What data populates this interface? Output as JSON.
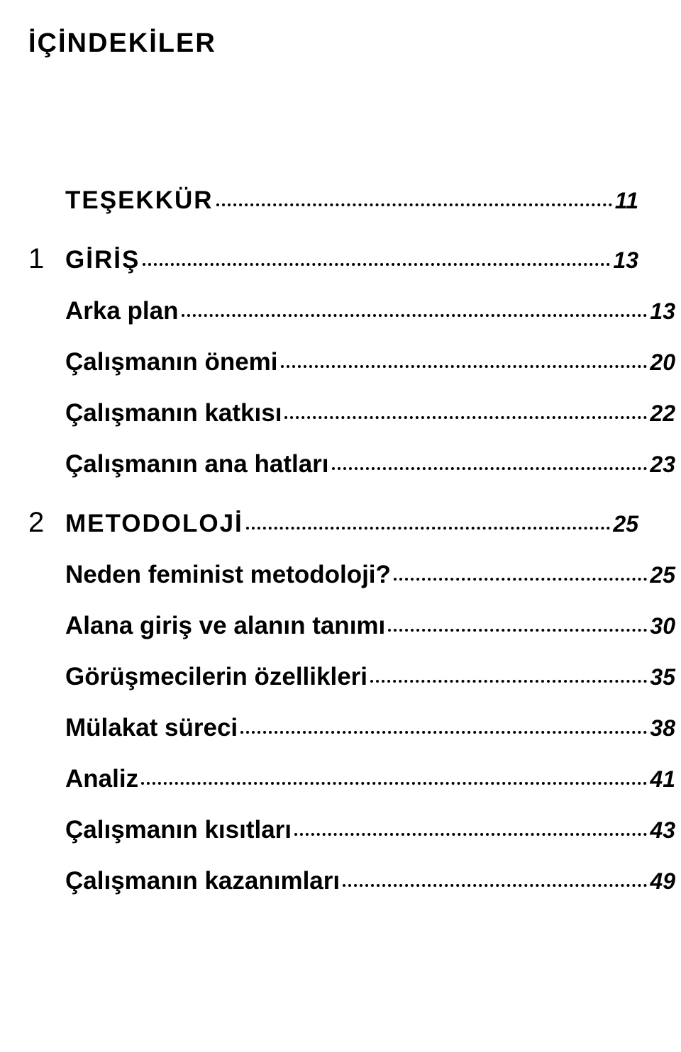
{
  "title": "İÇİNDEKİLER",
  "entries": [
    {
      "level": "main",
      "prefix": "",
      "label": "Teşekkür",
      "smallcaps": true,
      "page": "11"
    },
    {
      "level": "main",
      "prefix": "1",
      "label": "Gİrİş",
      "smallcaps": true,
      "page": "13"
    },
    {
      "level": "sub",
      "prefix": "",
      "label": "Arka plan",
      "smallcaps": false,
      "page": "13"
    },
    {
      "level": "sub",
      "prefix": "",
      "label": "Çalışmanın önemi",
      "smallcaps": false,
      "page": "20"
    },
    {
      "level": "sub",
      "prefix": "",
      "label": "Çalışmanın katkısı",
      "smallcaps": false,
      "page": "22"
    },
    {
      "level": "sub",
      "prefix": "",
      "label": "Çalışmanın ana hatları",
      "smallcaps": false,
      "page": "23"
    },
    {
      "level": "main",
      "prefix": "2",
      "label": "Metodolojİ",
      "smallcaps": true,
      "page": "25"
    },
    {
      "level": "sub",
      "prefix": "",
      "label": "Neden feminist metodoloji?",
      "smallcaps": false,
      "page": "25"
    },
    {
      "level": "sub",
      "prefix": "",
      "label": "Alana giriş ve alanın tanımı",
      "smallcaps": false,
      "page": "30"
    },
    {
      "level": "sub",
      "prefix": "",
      "label": "Görüşmecilerin özellikleri",
      "smallcaps": false,
      "page": "35"
    },
    {
      "level": "sub",
      "prefix": "",
      "label": "Mülakat süreci",
      "smallcaps": false,
      "page": "38"
    },
    {
      "level": "sub",
      "prefix": "",
      "label": "Analiz",
      "smallcaps": false,
      "page": "41"
    },
    {
      "level": "sub",
      "prefix": "",
      "label": "Çalışmanın kısıtları",
      "smallcaps": false,
      "page": "43"
    },
    {
      "level": "sub",
      "prefix": "",
      "label": "Çalışmanın kazanımları",
      "smallcaps": false,
      "page": "49"
    }
  ],
  "colors": {
    "text": "#000000",
    "background": "#ffffff",
    "leader": "#000000"
  },
  "typography": {
    "title_fontsize": 38,
    "entry_fontsize": 35,
    "pagenum_fontsize": 32,
    "prefix_fontsize": 40,
    "font_family": "Arial"
  }
}
